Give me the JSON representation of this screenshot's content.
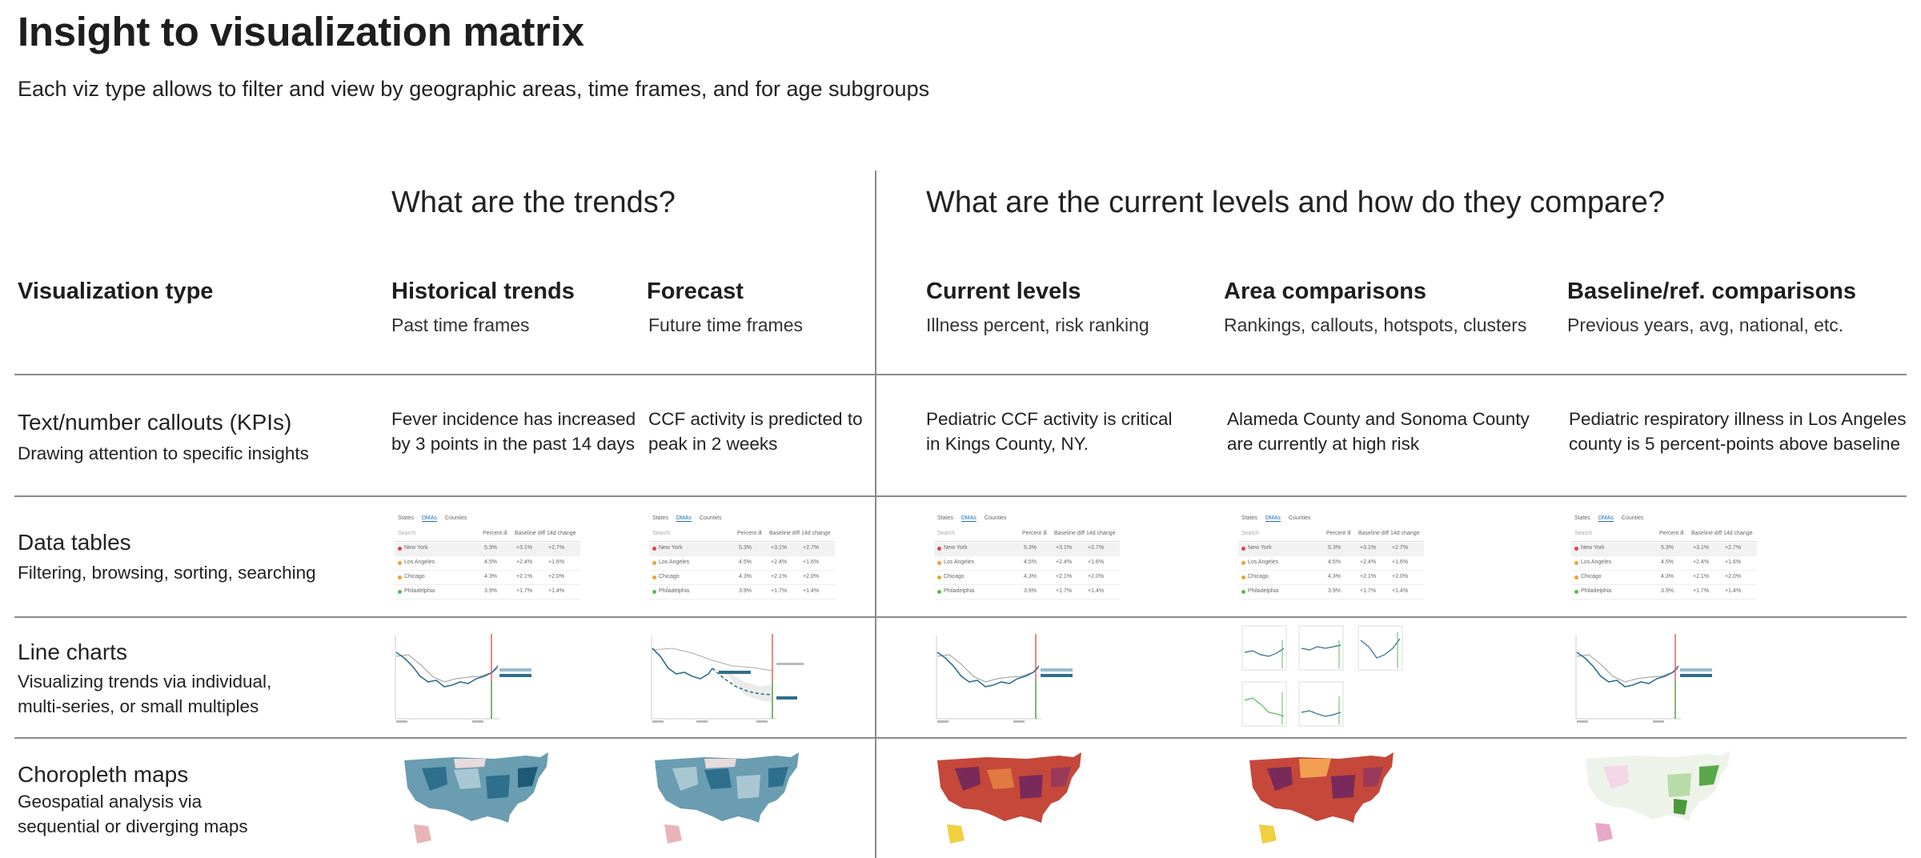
{
  "title": "Insight to visualization matrix",
  "subtitle": "Each viz type allows to filter and view by geographic areas, time frames, and for age subgroups",
  "groups": {
    "trends": "What are the trends?",
    "levels": "What are the current levels and how do they compare?"
  },
  "row_header": "Visualization type",
  "columns": [
    {
      "title": "Historical trends",
      "subtitle": "Past time frames"
    },
    {
      "title": "Forecast",
      "subtitle": "Future time frames"
    },
    {
      "title": "Current levels",
      "subtitle": "Illness percent, risk ranking"
    },
    {
      "title": "Area comparisons",
      "subtitle": "Rankings, callouts, hotspots, clusters"
    },
    {
      "title": "Baseline/ref. comparisons",
      "subtitle": "Previous years, avg, national, etc."
    }
  ],
  "rows": [
    {
      "title": "Text/number callouts (KPIs)",
      "subtitle": "Drawing attention to specific insights"
    },
    {
      "title": "Data tables",
      "subtitle": "Filtering, browsing, sorting, searching"
    },
    {
      "title": "Line charts",
      "subtitle_1": "Visualizing trends via individual,",
      "subtitle_2": "multi-series, or small multiples"
    },
    {
      "title": "Choropleth maps",
      "subtitle_1": "Geospatial analysis via",
      "subtitle_2": "sequential or diverging  maps"
    }
  ],
  "kpis": [
    {
      "line1": "Fever incidence has increased",
      "line2": "by 3 points in the past 14 days"
    },
    {
      "line1": "CCF activity is predicted to",
      "line2": "peak in 2 weeks"
    },
    {
      "line1": "Pediatric CCF activity is critical",
      "line2": "in Kings County, NY."
    },
    {
      "line1": "Alameda County and Sonoma County",
      "line2": "are currently at high risk"
    },
    {
      "line1": "Pediatric respiratory illness in Los Angeles",
      "line2": "county is 5 percent-points above baseline"
    }
  ],
  "mini_table": {
    "tabs": [
      "States",
      "DMAs",
      "Counties"
    ],
    "selected_tab": "DMAs",
    "search_placeholder": "Search",
    "headers": [
      "Percent ill",
      "Baseline diff",
      "14d change"
    ],
    "rows": [
      {
        "name": "New York",
        "values": [
          "5.3%",
          "+3.1%",
          "+2.7%"
        ],
        "color": "#e0434b"
      },
      {
        "name": "Los Angeles",
        "values": [
          "4.5%",
          "+2.4%",
          "+1.6%"
        ],
        "color": "#f0a030"
      },
      {
        "name": "Chicago",
        "values": [
          "4.3%",
          "+2.1%",
          "+2.0%"
        ],
        "color": "#f0a030"
      },
      {
        "name": "Philadelphia",
        "values": [
          "3.9%",
          "+1.7%",
          "+1.4%"
        ],
        "color": "#5cb85c"
      }
    ]
  },
  "colors": {
    "teal": "#2e6f8e",
    "teal_light": "#8fb8c8",
    "warm_dark": "#7a2a5a",
    "warm_mid": "#c5483a",
    "warm_light": "#f0a050",
    "diverging_green": "#5aa84a",
    "diverging_pink": "#e8a8c8"
  }
}
